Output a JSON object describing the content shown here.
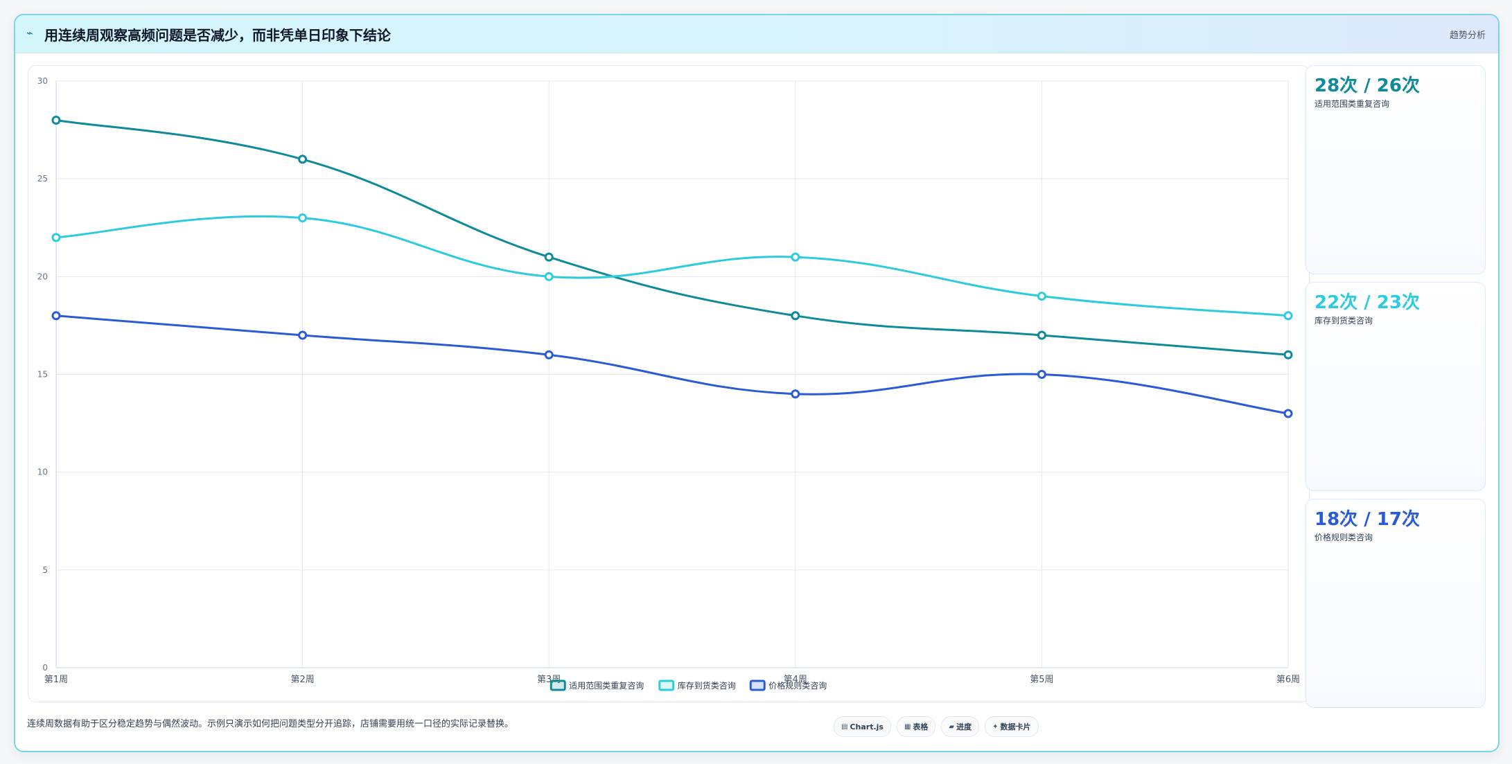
{
  "header": {
    "title": "用连续周观察高频问题是否减少，而非凭单日印象下结论",
    "tag": "趋势分析",
    "icon": "trend-chart-icon"
  },
  "chart_data": {
    "type": "line",
    "title": "",
    "xlabel": "",
    "ylabel": "",
    "categories": [
      "第1周",
      "第2周",
      "第3周",
      "第4周",
      "第5周",
      "第6周"
    ],
    "y_ticks": [
      "0",
      "5",
      "10",
      "15",
      "20",
      "25",
      "30"
    ],
    "ylim": [
      0,
      30
    ],
    "grid": true,
    "smooth": true,
    "legend_position": "bottom",
    "series": [
      {
        "name": "适用范围类重复咨询",
        "color": "#0e8a9a",
        "values": [
          28,
          26,
          21,
          18,
          17,
          16
        ]
      },
      {
        "name": "库存到货类咨询",
        "color": "#2ccbe0",
        "values": [
          22,
          23,
          20,
          21,
          19,
          18
        ]
      },
      {
        "name": "价格规则类咨询",
        "color": "#2a5bd7",
        "values": [
          18,
          17,
          16,
          14,
          15,
          13
        ]
      }
    ]
  },
  "stats": [
    {
      "value": "28次 / 26次",
      "label": "适用范围类重复咨询",
      "color": "#0e8a9a"
    },
    {
      "value": "22次 / 23次",
      "label": "库存到货类咨询",
      "color": "#2ccbe0"
    },
    {
      "value": "18次 / 17次",
      "label": "价格规则类咨询",
      "color": "#2a5bd7"
    }
  ],
  "footer": {
    "note": "连续周数据有助于区分稳定趋势与偶然波动。示例只演示如何把问题类型分开追踪，店铺需要用统一口径的实际记录替换。",
    "buttons": [
      {
        "icon": "chart-icon",
        "glyph": "▤",
        "label": "Chart.js"
      },
      {
        "icon": "table-icon",
        "glyph": "▦",
        "label": "表格"
      },
      {
        "icon": "progress-icon",
        "glyph": "▰",
        "label": "进度"
      },
      {
        "icon": "card-icon",
        "glyph": "✦",
        "label": "数据卡片"
      }
    ]
  }
}
